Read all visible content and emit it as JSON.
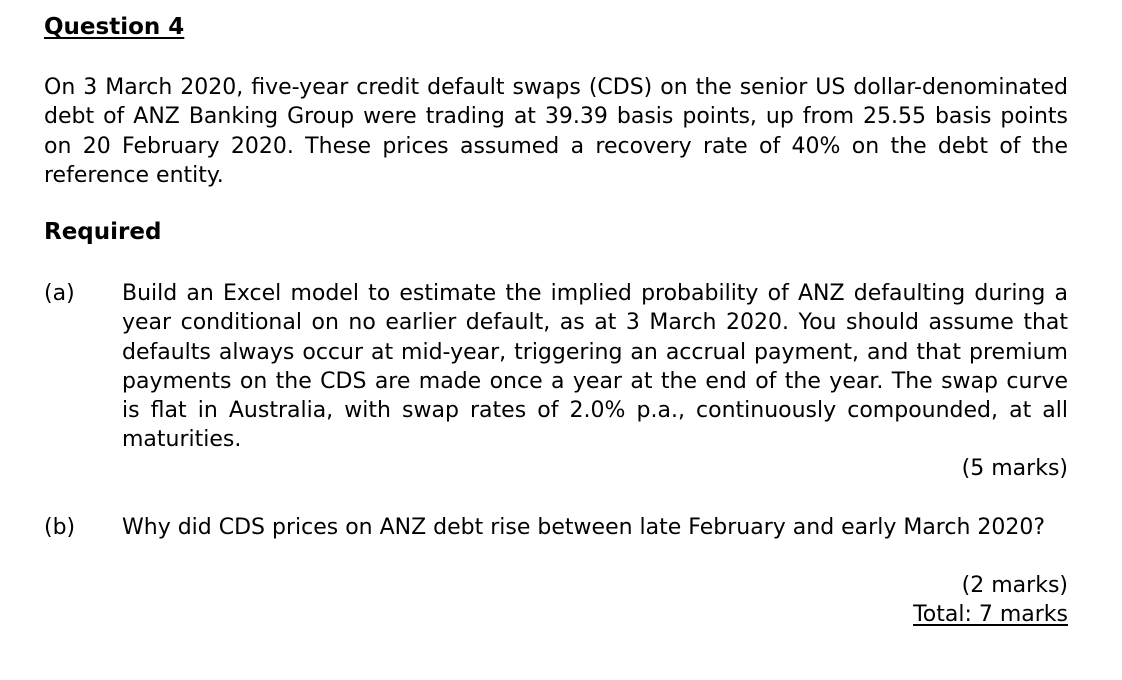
{
  "question": {
    "heading": "Question 4",
    "intro": "On 3 March 2020, five-year credit default swaps (CDS) on the senior US dollar-denominated debt of ANZ Banking Group were trading at 39.39 basis points, up from 25.55 basis points on 20 February 2020. These prices assumed a recovery rate of 40% on the debt of the reference entity.",
    "required_heading": "Required",
    "parts": [
      {
        "label": "(a)",
        "text": "Build an Excel model to estimate the implied probability of ANZ defaulting during a year conditional on no earlier default, as at 3 March 2020. You should assume that defaults always occur at mid-year, triggering an accrual payment, and that premium payments on the CDS are made once a year at the end of the year. The swap curve is flat in Australia, with swap rates of 2.0% p.a., continuously compounded, at all maturities.",
        "marks": "(5 marks)"
      },
      {
        "label": "(b)",
        "text": "Why did CDS prices on ANZ debt rise between late February and early March 2020?",
        "marks": "(2 marks)"
      }
    ],
    "total": "Total: 7 marks"
  }
}
